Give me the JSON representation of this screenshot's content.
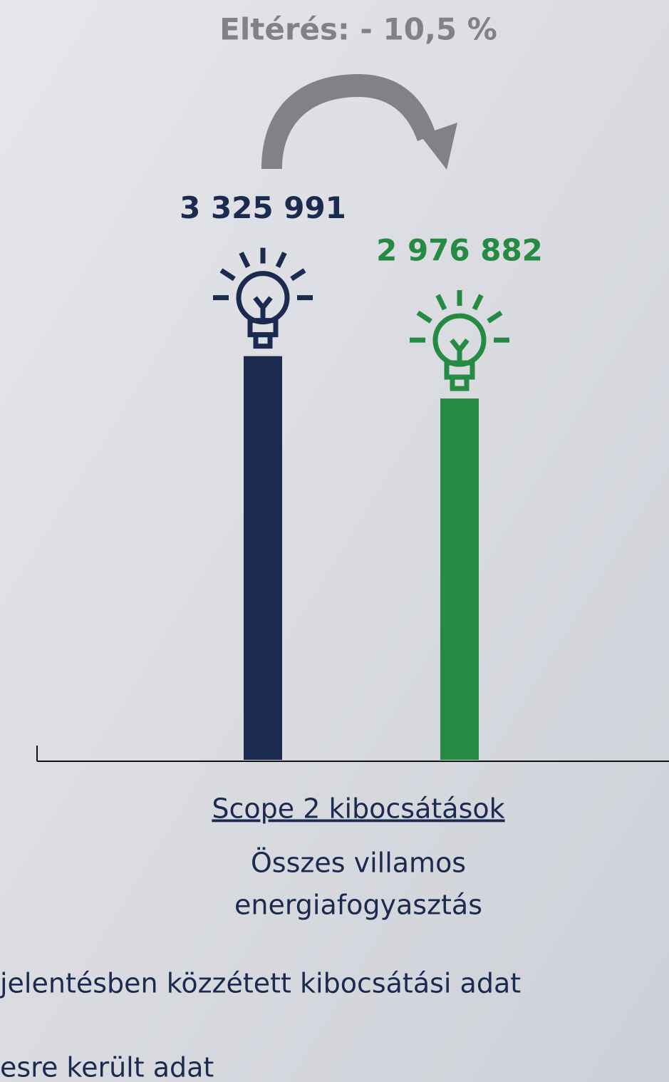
{
  "chart_data": {
    "type": "bar",
    "title": "Eltérés: - 10,5 %",
    "categories": [
      "Scope 2 kibocsátások"
    ],
    "x_label_lines": [
      "Összes villamos",
      "energiafogyasztás"
    ],
    "series": [
      {
        "name": "jelentésben közzétett kibocsátási adat",
        "color": "#1b2b4f",
        "values": [
          3325991
        ],
        "value_labels": [
          "3 325 991"
        ]
      },
      {
        "name": "esre került adat",
        "color": "#258a42",
        "values": [
          2976882
        ],
        "value_labels": [
          "2 976 882"
        ]
      }
    ],
    "ylim": [
      0,
      3500000
    ]
  }
}
